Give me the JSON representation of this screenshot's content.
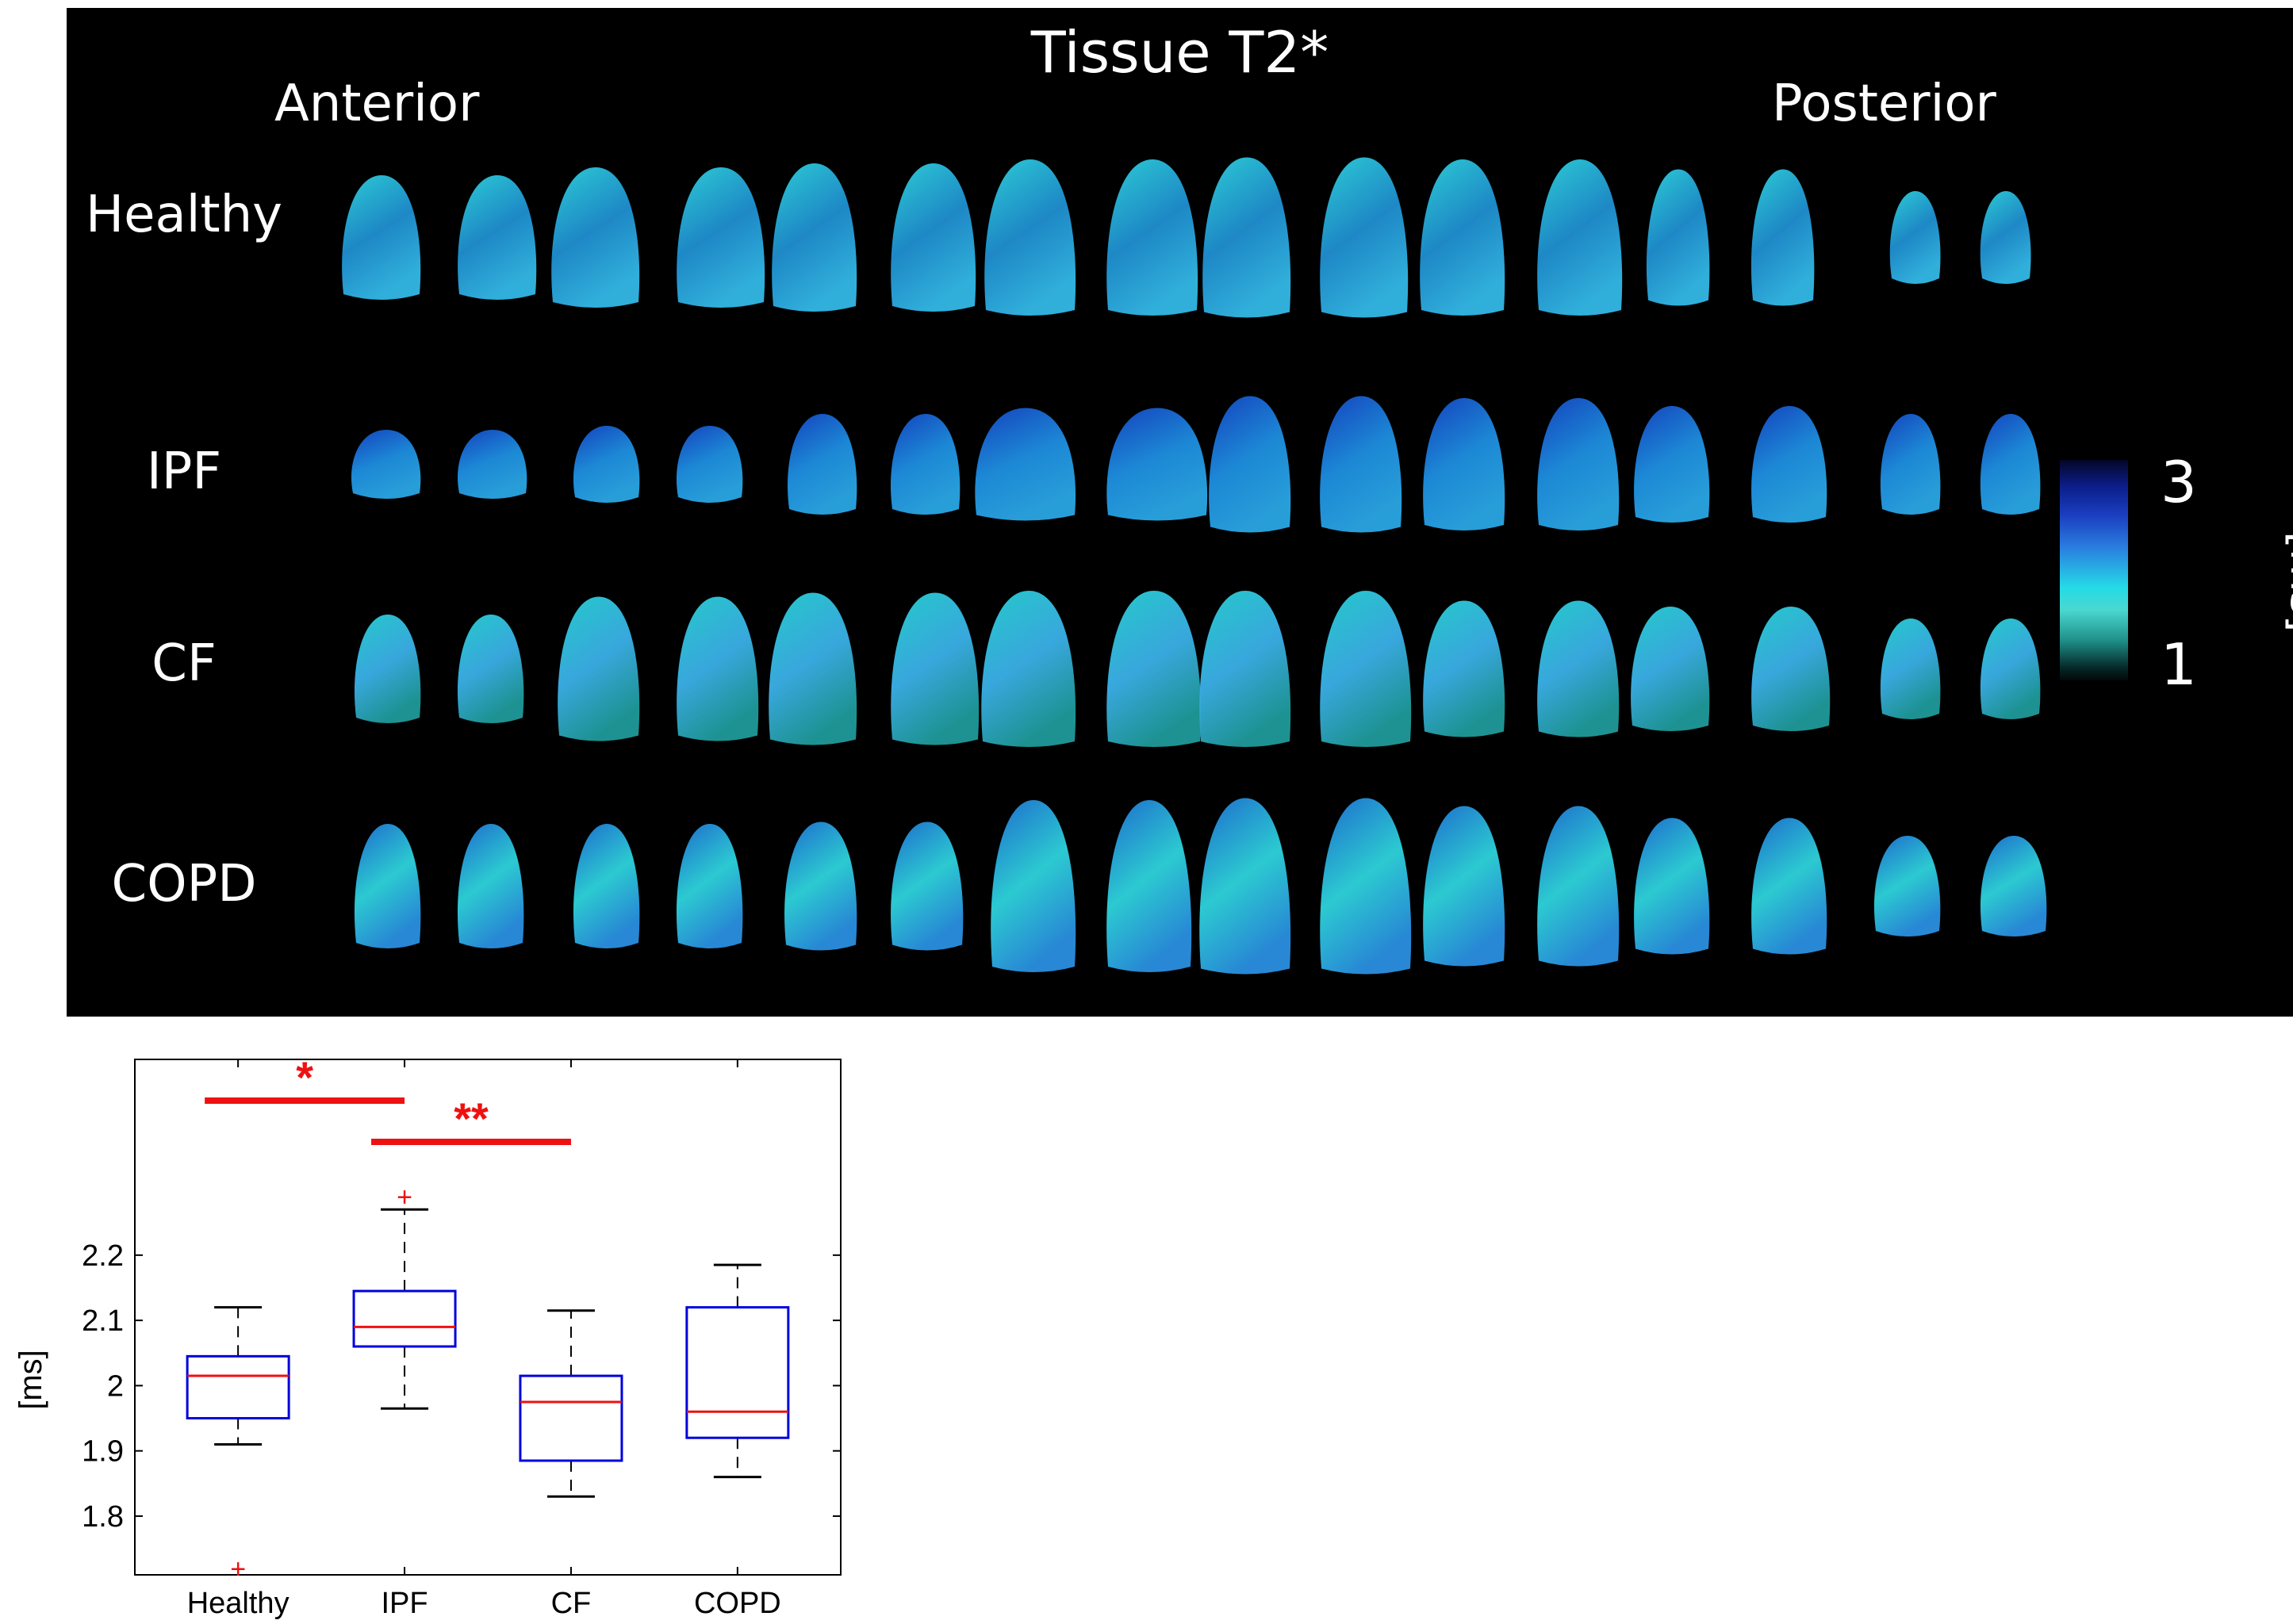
{
  "figure": {
    "title": "Tissue T2*",
    "orientation_left": "Anterior",
    "orientation_right": "Posterior",
    "rows": [
      "Healthy",
      "IPF",
      "CF",
      "COPD"
    ],
    "colorbar": {
      "max_label": "3",
      "min_label": "1",
      "unit": "[ms]",
      "colors": [
        "#040628",
        "#1a3ec0",
        "#24dbe6",
        "#1f8f88",
        "#030808"
      ]
    }
  },
  "chart_data": {
    "type": "box",
    "categories": [
      "Healthy",
      "IPF",
      "CF",
      "COPD"
    ],
    "xlabel": "",
    "ylabel": "[ms]",
    "yticks": [
      1.8,
      1.9,
      2,
      2.1,
      2.2
    ],
    "ylim": [
      1.71,
      2.5
    ],
    "grid": false,
    "boxes": [
      {
        "category": "Healthy",
        "whisker_low": 1.91,
        "q1": 1.95,
        "median": 2.015,
        "q3": 2.045,
        "whisker_high": 2.12,
        "outliers": [
          1.72
        ]
      },
      {
        "category": "IPF",
        "whisker_low": 1.965,
        "q1": 2.06,
        "median": 2.09,
        "q3": 2.145,
        "whisker_high": 2.27,
        "outliers": [
          2.29
        ]
      },
      {
        "category": "CF",
        "whisker_low": 1.83,
        "q1": 1.885,
        "median": 1.975,
        "q3": 2.015,
        "whisker_high": 2.115,
        "outliers": []
      },
      {
        "category": "COPD",
        "whisker_low": 1.86,
        "q1": 1.92,
        "median": 1.96,
        "q3": 2.12,
        "whisker_high": 2.185,
        "outliers": []
      }
    ],
    "significance": [
      {
        "from": "Healthy",
        "to": "IPF",
        "label": "*"
      },
      {
        "from": "IPF",
        "to": "CF",
        "label": "**"
      }
    ],
    "colors": {
      "box": "#0000dd",
      "median": "#ee1111",
      "whisker": "#000000",
      "outlier": "#ee1111",
      "significance": "#ee1111"
    }
  }
}
